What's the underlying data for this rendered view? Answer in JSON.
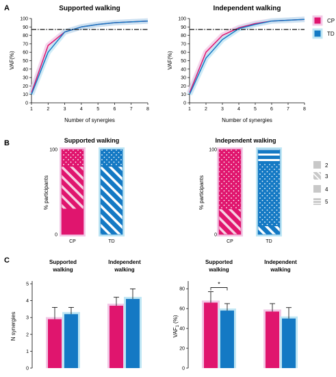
{
  "colors": {
    "cp": "#e0156e",
    "td": "#1479c4",
    "cp_halo": "#f2c8e6",
    "td_halo": "#bfe6f4",
    "threshold": "#111111"
  },
  "panel_labels": {
    "A": "A",
    "B": "B",
    "C": "C"
  },
  "chart_data": [
    {
      "type": "line",
      "panel": "A",
      "title": "Supported walking",
      "xlabel": "Number of synergies",
      "ylabel": "VAF(%)",
      "x": [
        1,
        2,
        3,
        4,
        5,
        6,
        7,
        8
      ],
      "xticks": [
        "1",
        "2",
        "3",
        "4",
        "5",
        "6",
        "7",
        "8"
      ],
      "yticks": [
        "0",
        "10",
        "20",
        "30",
        "40",
        "50",
        "60",
        "70",
        "80",
        "90",
        "100"
      ],
      "xlim": [
        1,
        8
      ],
      "ylim": [
        0,
        100
      ],
      "threshold": 87,
      "series": [
        {
          "name": "CP",
          "values": [
            12,
            68,
            84,
            90,
            93,
            95,
            96,
            97
          ]
        },
        {
          "name": "TD",
          "values": [
            10,
            60,
            84,
            90,
            93,
            95,
            96,
            97
          ]
        }
      ]
    },
    {
      "type": "line",
      "panel": "A",
      "title": "Independent walking",
      "xlabel": "Number of synergies",
      "ylabel": "VAF(%)",
      "x": [
        1,
        2,
        3,
        4,
        5,
        6,
        7,
        8
      ],
      "xticks": [
        "1",
        "2",
        "3",
        "4",
        "5",
        "6",
        "7",
        "8"
      ],
      "yticks": [
        "0",
        "10",
        "20",
        "30",
        "40",
        "50",
        "60",
        "70",
        "80",
        "90",
        "100"
      ],
      "xlim": [
        1,
        8
      ],
      "ylim": [
        0,
        100
      ],
      "threshold": 87,
      "legend": [
        "CP",
        "TD"
      ],
      "series": [
        {
          "name": "CP",
          "values": [
            12,
            60,
            80,
            89,
            94,
            97,
            98,
            99
          ]
        },
        {
          "name": "TD",
          "values": [
            10,
            53,
            75,
            88,
            93,
            97,
            98,
            99
          ]
        }
      ]
    },
    {
      "type": "bar",
      "panel": "B",
      "title": "Supported walking",
      "ylabel": "% participants",
      "categories": [
        "CP",
        "TD"
      ],
      "yticks": [
        "0",
        "100"
      ],
      "legend": [
        "2",
        "3",
        "4",
        "5"
      ],
      "series": [
        {
          "name": "2",
          "values": [
            30,
            0
          ]
        },
        {
          "name": "3",
          "values": [
            50,
            80
          ]
        },
        {
          "name": "4",
          "values": [
            20,
            20
          ]
        },
        {
          "name": "5",
          "values": [
            0,
            0
          ]
        }
      ]
    },
    {
      "type": "bar",
      "panel": "B",
      "title": "Independent walking",
      "ylabel": "% participants",
      "categories": [
        "CP",
        "TD"
      ],
      "yticks": [
        "0",
        "100"
      ],
      "series": [
        {
          "name": "2",
          "values": [
            0,
            0
          ]
        },
        {
          "name": "3",
          "values": [
            30,
            10
          ]
        },
        {
          "name": "4",
          "values": [
            70,
            73
          ]
        },
        {
          "name": "5",
          "values": [
            0,
            17
          ]
        }
      ]
    },
    {
      "type": "bar",
      "panel": "C",
      "ylabel": "N synergies",
      "groups": [
        "Supported\nwalking",
        "Independent\nwalking"
      ],
      "yticks": [
        "0",
        "1",
        "2",
        "3",
        "4",
        "5"
      ],
      "ylim": [
        0,
        5
      ],
      "series": [
        {
          "name": "CP",
          "values": [
            2.9,
            3.7
          ],
          "errors": [
            0.7,
            0.5
          ]
        },
        {
          "name": "TD",
          "values": [
            3.2,
            4.1
          ],
          "errors": [
            0.4,
            0.6
          ]
        }
      ]
    },
    {
      "type": "bar",
      "panel": "C",
      "ylabel": "VAF",
      "ylabel_sub": "1",
      "ylabel_suffix": " (%)",
      "groups": [
        "Supported\nwalking",
        "Independent\nwalking"
      ],
      "yticks": [
        "0",
        "20",
        "40",
        "60",
        "80"
      ],
      "ylim": [
        0,
        85
      ],
      "significance": "*",
      "series": [
        {
          "name": "CP",
          "values": [
            66,
            57
          ],
          "errors": [
            11,
            8
          ]
        },
        {
          "name": "TD",
          "values": [
            58,
            50
          ],
          "errors": [
            7,
            11
          ]
        }
      ]
    }
  ]
}
